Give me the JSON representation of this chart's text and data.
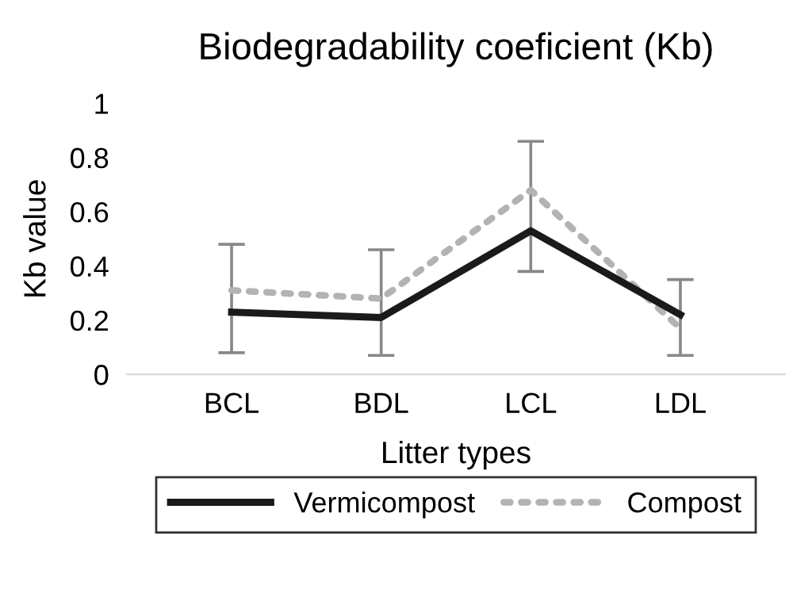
{
  "chart_data": {
    "type": "line",
    "title": "Biodegradability coeficient (Kb)",
    "xlabel": "Litter types",
    "ylabel": "Kb value",
    "categories": [
      "BCL",
      "BDL",
      "LCL",
      "LDL"
    ],
    "series": [
      {
        "name": "Vermicompost",
        "color": "#1a1a1a",
        "line_style": "solid",
        "values": [
          0.23,
          0.21,
          0.53,
          0.22
        ]
      },
      {
        "name": "Compost",
        "color": "#b3b3b3",
        "line_style": "dotted",
        "values": [
          0.31,
          0.28,
          0.68,
          0.17
        ],
        "errors": [
          [
            0.08,
            0.48
          ],
          [
            0.07,
            0.46
          ],
          [
            0.38,
            0.86
          ],
          [
            0.07,
            0.35
          ]
        ]
      }
    ],
    "ylim": [
      0,
      1
    ],
    "yticks": [
      0,
      0.2,
      0.4,
      0.6,
      0.8,
      1
    ],
    "grid": false,
    "legend": "bottom",
    "marker": "none"
  }
}
